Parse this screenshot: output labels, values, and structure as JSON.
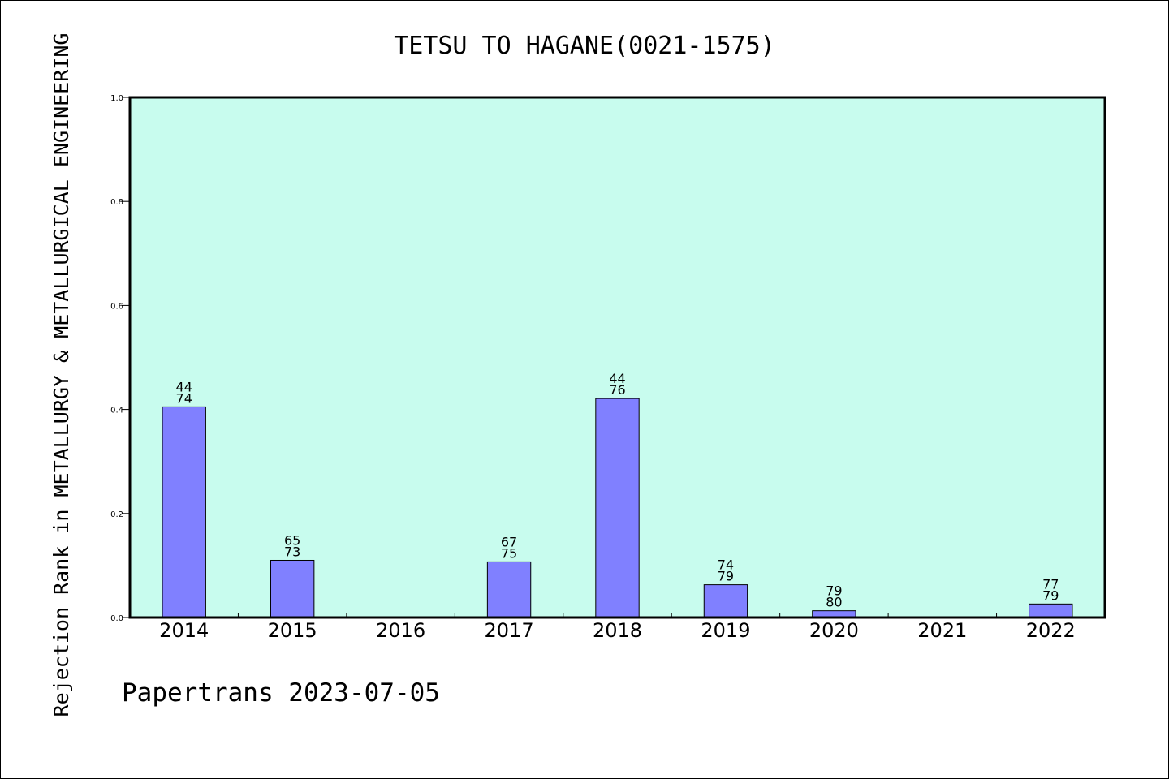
{
  "chart_data": {
    "type": "bar",
    "title": "TETSU TO HAGANE(0021-1575)",
    "xlabel": "",
    "ylabel": "Rejection Rank in METALLURGY & METALLURGICAL ENGINEERING",
    "ylim": [
      0,
      1.0
    ],
    "yticks": [
      "0.0",
      "0.2",
      "0.4",
      "0.6",
      "0.8",
      "1.0"
    ],
    "categories": [
      "2014",
      "2015",
      "2016",
      "2017",
      "2018",
      "2019",
      "2020",
      "2021",
      "2022"
    ],
    "values": [
      0.405,
      0.11,
      null,
      0.107,
      0.421,
      0.063,
      0.013,
      null,
      0.026
    ],
    "labels_top": [
      "44",
      "65",
      "",
      "67",
      "44",
      "74",
      "79",
      "",
      "77"
    ],
    "labels_bottom": [
      "74",
      "73",
      "",
      "75",
      "76",
      "79",
      "80",
      "",
      "79"
    ],
    "grid": false,
    "colors": {
      "plot_background": "#c8fcee",
      "bar_fill": "#8080ff",
      "bar_stroke": "#000000"
    }
  },
  "footer": "Papertrans 2023-07-05"
}
